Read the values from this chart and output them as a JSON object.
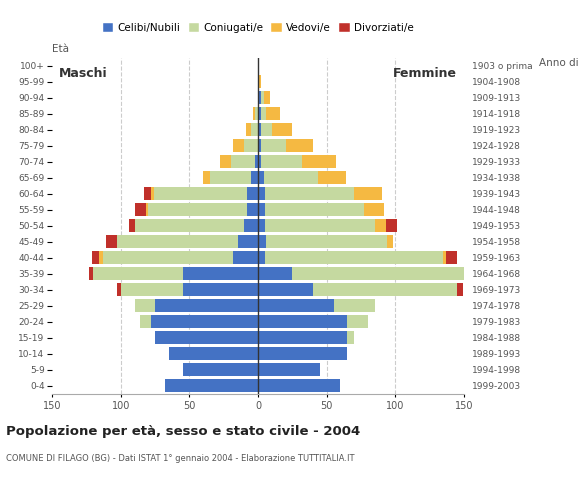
{
  "age_groups": [
    "0-4",
    "5-9",
    "10-14",
    "15-19",
    "20-24",
    "25-29",
    "30-34",
    "35-39",
    "40-44",
    "45-49",
    "50-54",
    "55-59",
    "60-64",
    "65-69",
    "70-74",
    "75-79",
    "80-84",
    "85-89",
    "90-94",
    "95-99",
    "100+"
  ],
  "birth_years": [
    "1999-2003",
    "1994-1998",
    "1989-1993",
    "1984-1988",
    "1979-1983",
    "1974-1978",
    "1969-1973",
    "1964-1968",
    "1959-1963",
    "1954-1958",
    "1949-1953",
    "1944-1948",
    "1939-1943",
    "1934-1938",
    "1929-1933",
    "1924-1928",
    "1919-1923",
    "1914-1918",
    "1909-1913",
    "1904-1908",
    "1903 o prima"
  ],
  "males": {
    "celibe": [
      68,
      55,
      65,
      75,
      78,
      75,
      55,
      55,
      18,
      15,
      10,
      8,
      8,
      5,
      2,
      0,
      0,
      0,
      0,
      0,
      0
    ],
    "coniugato": [
      0,
      0,
      0,
      0,
      8,
      15,
      45,
      65,
      95,
      88,
      80,
      72,
      68,
      30,
      18,
      10,
      5,
      2,
      0,
      0,
      0
    ],
    "vedovo": [
      0,
      0,
      0,
      0,
      0,
      0,
      0,
      0,
      3,
      0,
      0,
      2,
      2,
      5,
      8,
      8,
      4,
      2,
      0,
      0,
      0
    ],
    "divorziato": [
      0,
      0,
      0,
      0,
      0,
      0,
      3,
      3,
      5,
      8,
      4,
      8,
      5,
      0,
      0,
      0,
      0,
      0,
      0,
      0,
      0
    ]
  },
  "females": {
    "nubile": [
      60,
      45,
      65,
      65,
      65,
      55,
      40,
      25,
      5,
      6,
      5,
      5,
      5,
      4,
      2,
      2,
      2,
      2,
      2,
      0,
      0
    ],
    "coniugata": [
      0,
      0,
      0,
      5,
      15,
      30,
      105,
      128,
      130,
      88,
      80,
      72,
      65,
      40,
      30,
      18,
      8,
      4,
      2,
      0,
      0
    ],
    "vedova": [
      0,
      0,
      0,
      0,
      0,
      0,
      0,
      2,
      2,
      4,
      8,
      15,
      20,
      20,
      25,
      20,
      15,
      10,
      5,
      2,
      0
    ],
    "divorziata": [
      0,
      0,
      0,
      0,
      0,
      0,
      4,
      8,
      8,
      0,
      8,
      0,
      0,
      0,
      0,
      0,
      0,
      0,
      0,
      0,
      0
    ]
  },
  "colors": {
    "celibe_nubile": "#4472c4",
    "coniugato_a": "#c5d9a0",
    "vedovo_a": "#f5b942",
    "divorziato_a": "#c0302a"
  },
  "xlim": 150,
  "title": "Popolazione per età, sesso e stato civile - 2004",
  "subtitle": "COMUNE DI FILAGO (BG) - Dati ISTAT 1° gennaio 2004 - Elaborazione TUTTITALIA.IT",
  "label_maschi": "Maschi",
  "label_femmine": "Femmine",
  "legend_labels": [
    "Celibi/Nubili",
    "Coniugati/e",
    "Vedovi/e",
    "Divorziati/e"
  ],
  "bg_color": "#ffffff",
  "grid_color": "#cccccc"
}
